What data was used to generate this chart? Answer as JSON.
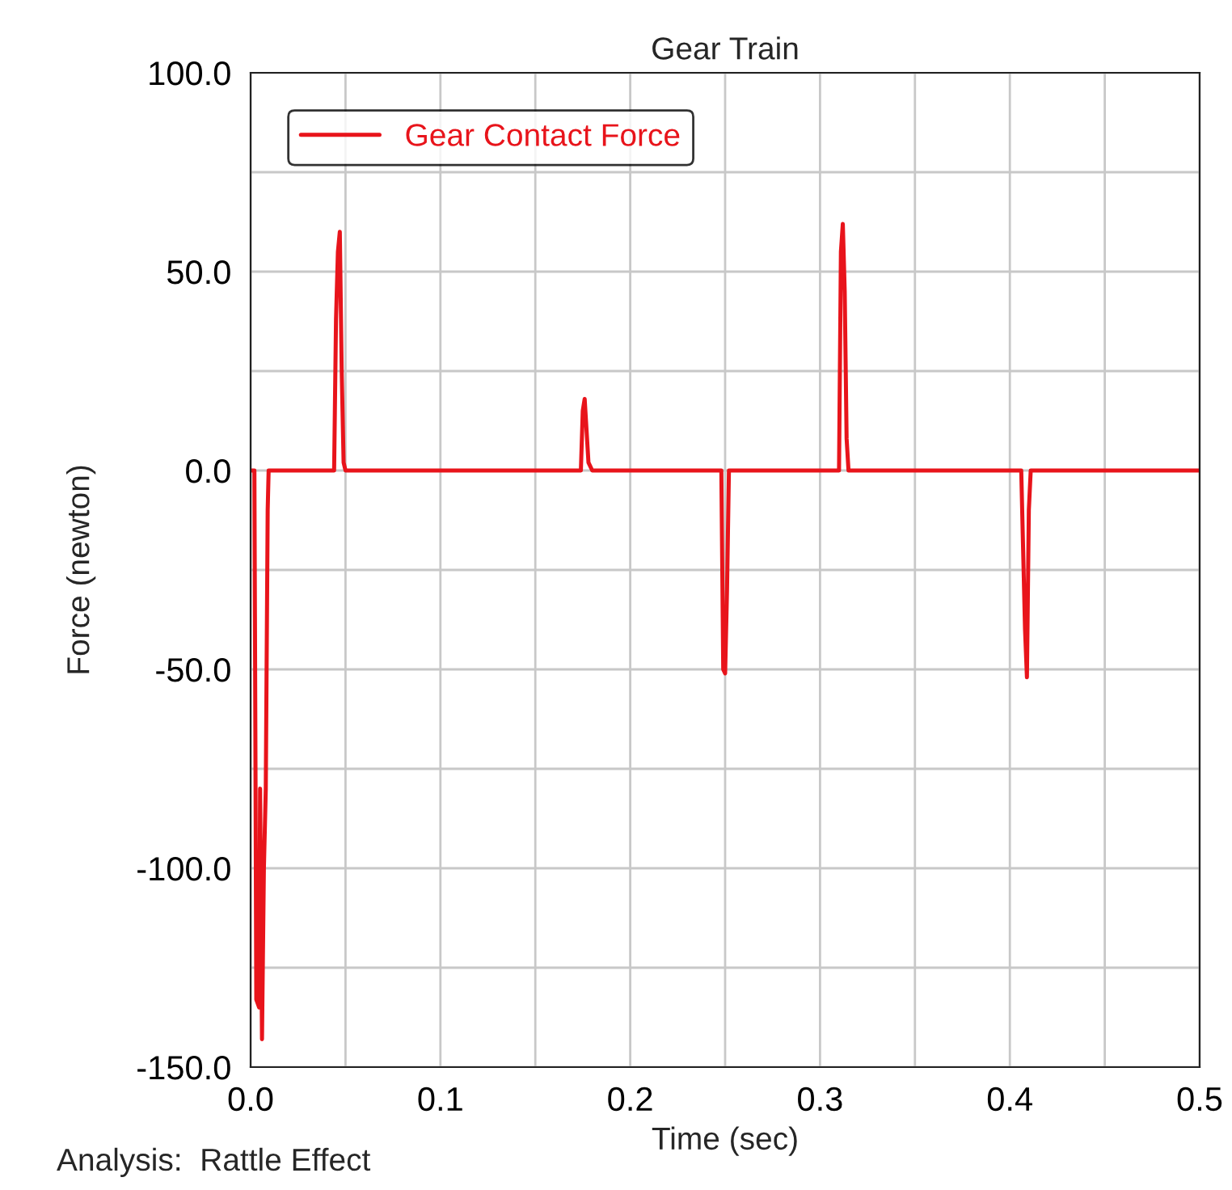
{
  "chart_data": {
    "type": "line",
    "title": "Gear Train",
    "xlabel": "Time (sec)",
    "ylabel": "Force (newton)",
    "series": [
      {
        "name": "Gear Contact Force",
        "color": "#e8141b",
        "x": [
          0,
          0.002,
          0.0025,
          0.003,
          0.0045,
          0.005,
          0.006,
          0.007,
          0.008,
          0.009,
          0.0095,
          0.044,
          0.045,
          0.046,
          0.047,
          0.048,
          0.049,
          0.05,
          0.174,
          0.175,
          0.176,
          0.177,
          0.178,
          0.18,
          0.248,
          0.249,
          0.25,
          0.251,
          0.252,
          0.31,
          0.311,
          0.312,
          0.313,
          0.314,
          0.315,
          0.316,
          0.406,
          0.407,
          0.408,
          0.409,
          0.41,
          0.411,
          0.5
        ],
        "values": [
          0,
          0,
          -65,
          -133,
          -135,
          -80,
          -143,
          -100,
          -80,
          -10,
          0,
          0,
          38,
          55,
          60,
          25,
          2,
          0,
          0,
          15,
          18,
          10,
          2,
          0,
          0,
          -50,
          -51,
          -30,
          0,
          0,
          55,
          62,
          45,
          8,
          0,
          0,
          0,
          -20,
          -40,
          -52,
          -10,
          0,
          0
        ]
      }
    ],
    "xlim": [
      0,
      0.5
    ],
    "ylim": [
      -150,
      100
    ],
    "xticks": [
      {
        "value": 0,
        "label": "0.0"
      },
      {
        "value": 0.05,
        "label": null
      },
      {
        "value": 0.1,
        "label": "0.1"
      },
      {
        "value": 0.15,
        "label": null
      },
      {
        "value": 0.2,
        "label": "0.2"
      },
      {
        "value": 0.25,
        "label": null
      },
      {
        "value": 0.3,
        "label": "0.3"
      },
      {
        "value": 0.35,
        "label": null
      },
      {
        "value": 0.4,
        "label": "0.4"
      },
      {
        "value": 0.45,
        "label": null
      },
      {
        "value": 0.5,
        "label": "0.5"
      }
    ],
    "yticks": [
      {
        "value": -150,
        "label": "-150.0"
      },
      {
        "value": -125,
        "label": null
      },
      {
        "value": -100,
        "label": "-100.0"
      },
      {
        "value": -75,
        "label": null
      },
      {
        "value": -50,
        "label": "-50.0"
      },
      {
        "value": -25,
        "label": null
      },
      {
        "value": 0,
        "label": "0.0"
      },
      {
        "value": 25,
        "label": null
      },
      {
        "value": 50,
        "label": "50.0"
      },
      {
        "value": 75,
        "label": null
      },
      {
        "value": 100,
        "label": "100.0"
      }
    ],
    "grid": true,
    "legend": "top left",
    "marker": "none",
    "line_style": "solid",
    "annotations": [
      "Analysis:  Rattle Effect"
    ]
  }
}
